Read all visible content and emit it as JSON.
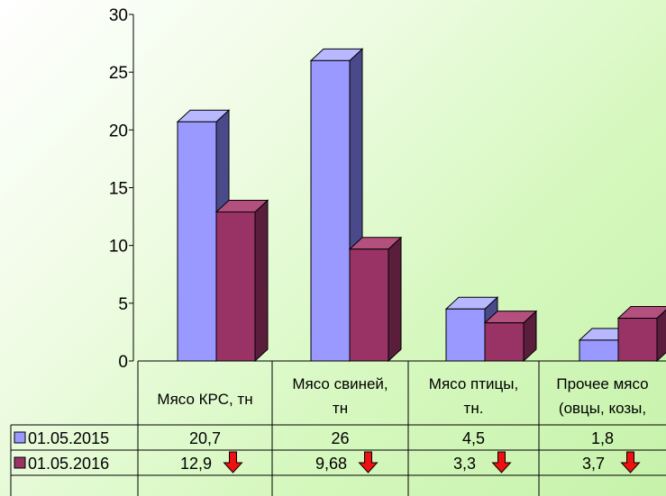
{
  "chart_data": {
    "type": "bar",
    "title": "",
    "xlabel": "",
    "ylabel": "",
    "ylim": [
      0,
      30
    ],
    "yticks": [
      0,
      5,
      10,
      15,
      20,
      25,
      30
    ],
    "grid": false,
    "categories": [
      [
        "Мясо КРС, тн"
      ],
      [
        "Мясо свиней,",
        "тн"
      ],
      [
        "Мясо птицы,",
        "тн."
      ],
      [
        "Прочее мясо",
        "(овцы, козы,"
      ]
    ],
    "series": [
      {
        "name": "01.05.2015",
        "values": [
          20.7,
          26,
          4.5,
          1.8
        ],
        "labels": [
          "20,7",
          "26",
          "4,5",
          "1,8"
        ],
        "color": "#9999ff",
        "side": "#4a4a8a",
        "top": "#b8b8ff",
        "arrows": false
      },
      {
        "name": "01.05.2016",
        "values": [
          12.9,
          9.68,
          3.3,
          3.7
        ],
        "labels": [
          "12,9",
          "9,68",
          "3,3",
          "3,7"
        ],
        "color": "#993366",
        "side": "#5a1e3c",
        "top": "#b3507e",
        "arrows": true
      }
    ],
    "trend_arrow_color": "#ee1111"
  }
}
